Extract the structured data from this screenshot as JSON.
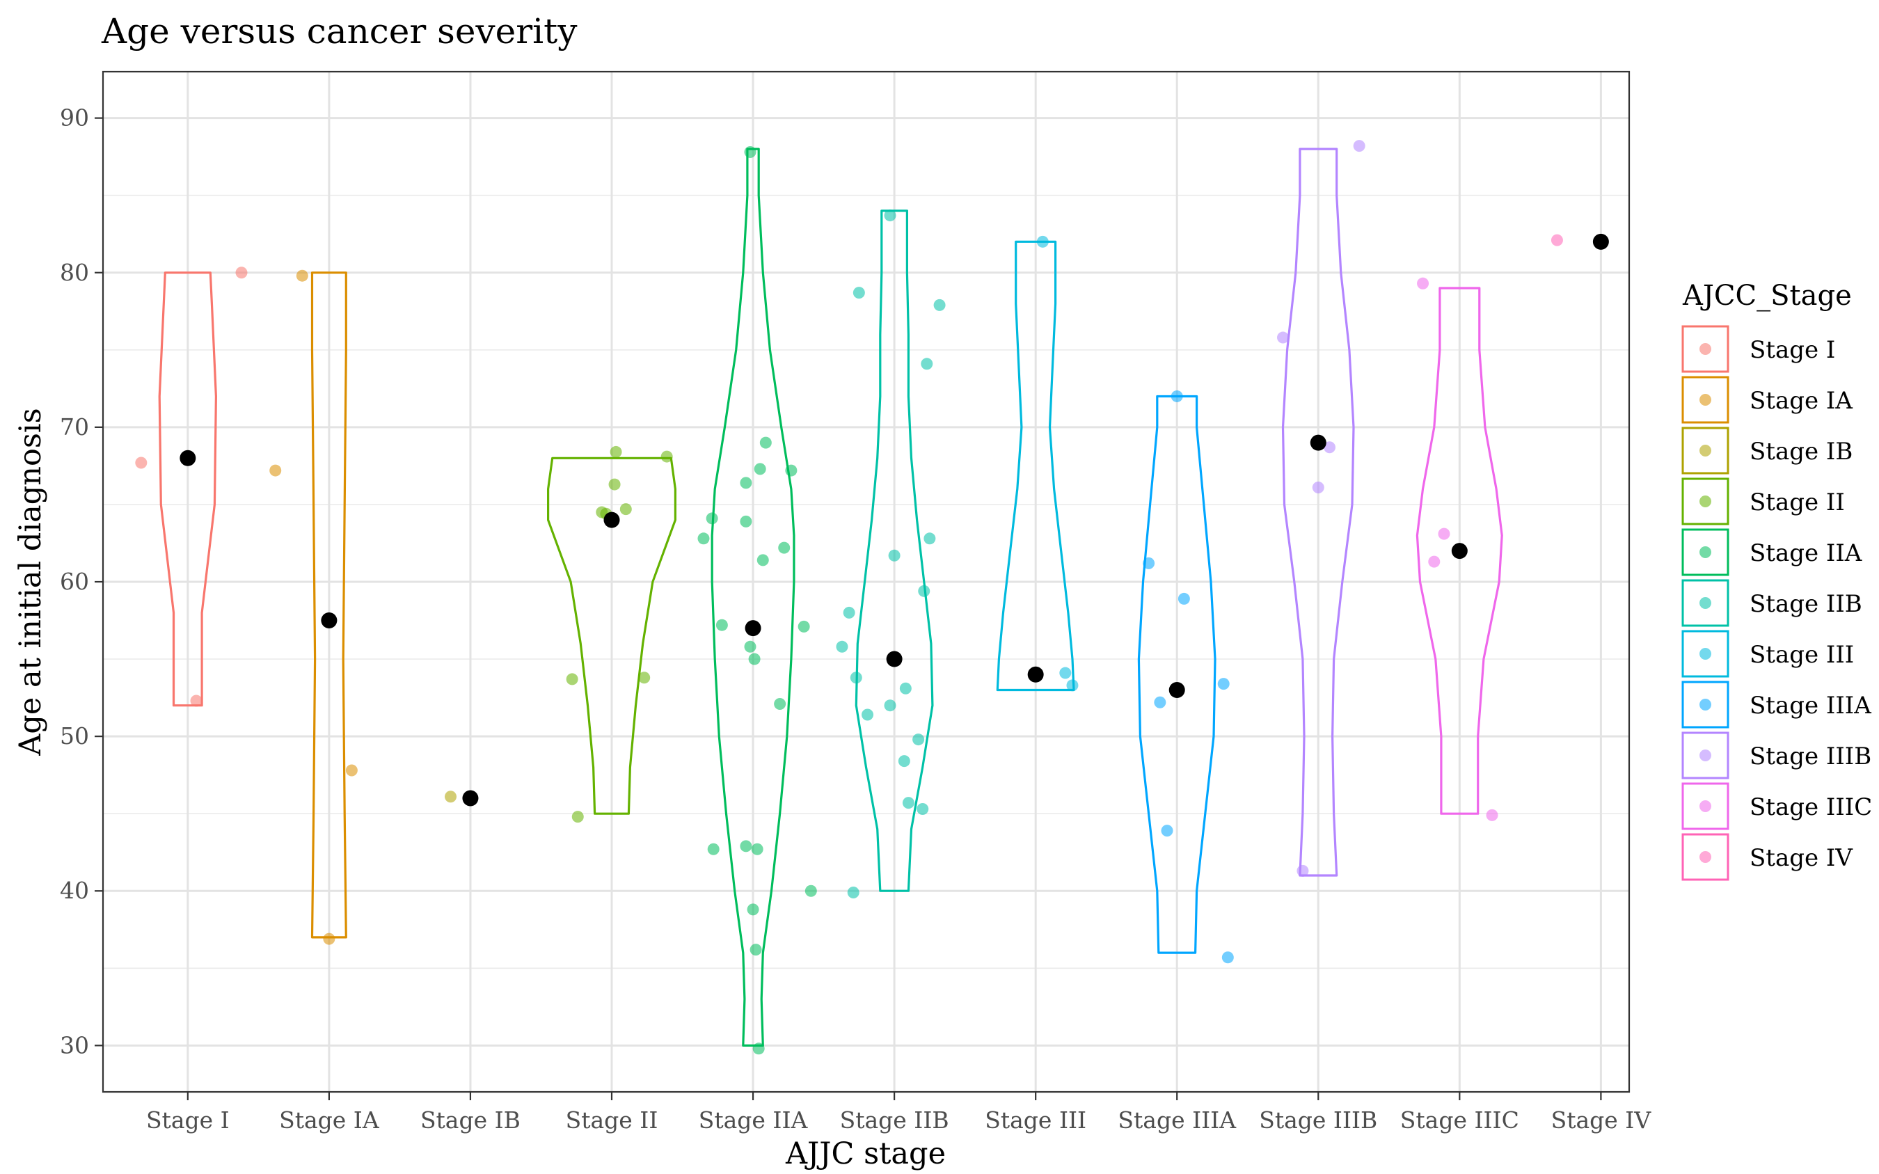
{
  "chart_data": {
    "type": "violin",
    "title": "Age versus cancer severity",
    "xlabel": "AJJC stage",
    "ylabel": "Age at initial diagnosis",
    "ylim": [
      27.0,
      93.0
    ],
    "yticks": [
      30,
      40,
      50,
      60,
      70,
      80,
      90
    ],
    "grid": true,
    "legend": {
      "title": "AJCC_Stage",
      "position": "right"
    },
    "categories": [
      "Stage I",
      "Stage IA",
      "Stage IB",
      "Stage II",
      "Stage IIA",
      "Stage IIB",
      "Stage III",
      "Stage IIIA",
      "Stage IIIB",
      "Stage IIIC",
      "Stage IV"
    ],
    "colors": [
      "#F8766D",
      "#DB8E00",
      "#AEA200",
      "#64B200",
      "#00BD5C",
      "#00C1A7",
      "#00BADE",
      "#00A6FF",
      "#B385FF",
      "#EF67EB",
      "#FF63B6"
    ],
    "median_color": "#000000",
    "series": [
      {
        "name": "Stage I",
        "median": 68.0,
        "points": [
          {
            "x": -0.33,
            "y": 67.7
          },
          {
            "x": 0.38,
            "y": 80.0
          },
          {
            "x": 0.06,
            "y": 52.3
          }
        ],
        "violin": [
          [
            52.0,
            0.1
          ],
          [
            58.0,
            0.1
          ],
          [
            65.0,
            0.19
          ],
          [
            72.0,
            0.2
          ],
          [
            78.0,
            0.17
          ],
          [
            80.0,
            0.16
          ]
        ]
      },
      {
        "name": "Stage IA",
        "median": 57.5,
        "points": [
          {
            "x": -0.19,
            "y": 79.8
          },
          {
            "x": -0.38,
            "y": 67.2
          },
          {
            "x": 0.16,
            "y": 47.8
          },
          {
            "x": 0.0,
            "y": 36.9
          }
        ],
        "violin": [
          [
            37.0,
            0.12
          ],
          [
            45.0,
            0.11
          ],
          [
            55.0,
            0.1
          ],
          [
            65.0,
            0.11
          ],
          [
            75.0,
            0.12
          ],
          [
            80.0,
            0.12
          ]
        ]
      },
      {
        "name": "Stage IB",
        "median": 46.0,
        "points": [
          {
            "x": -0.14,
            "y": 46.1
          }
        ],
        "violin": []
      },
      {
        "name": "Stage II",
        "median": 64.0,
        "points": [
          {
            "x": 0.03,
            "y": 68.4
          },
          {
            "x": 0.39,
            "y": 68.1
          },
          {
            "x": 0.02,
            "y": 66.3
          },
          {
            "x": 0.1,
            "y": 64.7
          },
          {
            "x": -0.07,
            "y": 64.5
          },
          {
            "x": -0.04,
            "y": 64.4
          },
          {
            "x": -0.28,
            "y": 53.7
          },
          {
            "x": 0.23,
            "y": 53.8
          },
          {
            "x": -0.24,
            "y": 44.8
          }
        ],
        "violin": [
          [
            45.0,
            0.12
          ],
          [
            48.0,
            0.13
          ],
          [
            52.0,
            0.17
          ],
          [
            56.0,
            0.22
          ],
          [
            60.0,
            0.29
          ],
          [
            64.0,
            0.45
          ],
          [
            66.0,
            0.45
          ],
          [
            68.0,
            0.42
          ]
        ]
      },
      {
        "name": "Stage IIA",
        "median": 57.0,
        "points": [
          {
            "x": -0.02,
            "y": 87.8
          },
          {
            "x": 0.09,
            "y": 69.0
          },
          {
            "x": 0.05,
            "y": 67.3
          },
          {
            "x": 0.27,
            "y": 67.2
          },
          {
            "x": -0.05,
            "y": 66.4
          },
          {
            "x": -0.29,
            "y": 64.1
          },
          {
            "x": -0.05,
            "y": 63.9
          },
          {
            "x": 0.22,
            "y": 62.2
          },
          {
            "x": -0.35,
            "y": 62.8
          },
          {
            "x": 0.07,
            "y": 61.4
          },
          {
            "x": -0.22,
            "y": 57.2
          },
          {
            "x": 0.36,
            "y": 57.1
          },
          {
            "x": -0.02,
            "y": 55.8
          },
          {
            "x": 0.01,
            "y": 55.0
          },
          {
            "x": 0.19,
            "y": 52.1
          },
          {
            "x": -0.28,
            "y": 42.7
          },
          {
            "x": -0.05,
            "y": 42.9
          },
          {
            "x": 0.03,
            "y": 42.7
          },
          {
            "x": 0.41,
            "y": 40.0
          },
          {
            "x": 0.0,
            "y": 38.8
          },
          {
            "x": 0.02,
            "y": 36.2
          },
          {
            "x": 0.04,
            "y": 29.8
          }
        ],
        "violin": [
          [
            30.0,
            0.07
          ],
          [
            33.0,
            0.06
          ],
          [
            36.0,
            0.07
          ],
          [
            40.0,
            0.13
          ],
          [
            45.0,
            0.19
          ],
          [
            50.0,
            0.24
          ],
          [
            55.0,
            0.27
          ],
          [
            60.0,
            0.29
          ],
          [
            63.0,
            0.29
          ],
          [
            66.0,
            0.27
          ],
          [
            70.0,
            0.2
          ],
          [
            75.0,
            0.12
          ],
          [
            80.0,
            0.07
          ],
          [
            85.0,
            0.04
          ],
          [
            88.0,
            0.04
          ]
        ]
      },
      {
        "name": "Stage IIB",
        "median": 55.0,
        "points": [
          {
            "x": -0.03,
            "y": 83.7
          },
          {
            "x": -0.25,
            "y": 78.7
          },
          {
            "x": 0.32,
            "y": 77.9
          },
          {
            "x": 0.23,
            "y": 74.1
          },
          {
            "x": 0.25,
            "y": 62.8
          },
          {
            "x": 0.0,
            "y": 61.7
          },
          {
            "x": 0.21,
            "y": 59.4
          },
          {
            "x": -0.32,
            "y": 58.0
          },
          {
            "x": -0.37,
            "y": 55.8
          },
          {
            "x": -0.27,
            "y": 53.8
          },
          {
            "x": 0.08,
            "y": 53.1
          },
          {
            "x": -0.03,
            "y": 52.0
          },
          {
            "x": -0.19,
            "y": 51.4
          },
          {
            "x": 0.17,
            "y": 49.8
          },
          {
            "x": 0.07,
            "y": 48.4
          },
          {
            "x": 0.1,
            "y": 45.7
          },
          {
            "x": 0.2,
            "y": 45.3
          },
          {
            "x": -0.29,
            "y": 39.9
          }
        ],
        "violin": [
          [
            40.0,
            0.1
          ],
          [
            44.0,
            0.12
          ],
          [
            48.0,
            0.2
          ],
          [
            52.0,
            0.27
          ],
          [
            56.0,
            0.26
          ],
          [
            60.0,
            0.21
          ],
          [
            64.0,
            0.16
          ],
          [
            68.0,
            0.12
          ],
          [
            72.0,
            0.1
          ],
          [
            76.0,
            0.1
          ],
          [
            80.0,
            0.09
          ],
          [
            84.0,
            0.09
          ]
        ]
      },
      {
        "name": "Stage III",
        "median": 54.0,
        "points": [
          {
            "x": 0.05,
            "y": 82.0
          },
          {
            "x": 0.21,
            "y": 54.1
          },
          {
            "x": 0.26,
            "y": 53.3
          }
        ],
        "violin": [
          [
            53.0,
            0.27
          ],
          [
            55.0,
            0.26
          ],
          [
            58.0,
            0.23
          ],
          [
            62.0,
            0.18
          ],
          [
            66.0,
            0.13
          ],
          [
            70.0,
            0.1
          ],
          [
            74.0,
            0.12
          ],
          [
            78.0,
            0.14
          ],
          [
            82.0,
            0.14
          ]
        ]
      },
      {
        "name": "Stage IIIA",
        "median": 53.0,
        "points": [
          {
            "x": 0.0,
            "y": 72.0
          },
          {
            "x": -0.2,
            "y": 61.2
          },
          {
            "x": 0.05,
            "y": 58.9
          },
          {
            "x": 0.33,
            "y": 53.4
          },
          {
            "x": -0.12,
            "y": 52.2
          },
          {
            "x": -0.07,
            "y": 43.9
          },
          {
            "x": 0.36,
            "y": 35.7
          }
        ],
        "violin": [
          [
            36.0,
            0.13
          ],
          [
            40.0,
            0.14
          ],
          [
            45.0,
            0.2
          ],
          [
            50.0,
            0.26
          ],
          [
            55.0,
            0.27
          ],
          [
            60.0,
            0.24
          ],
          [
            65.0,
            0.19
          ],
          [
            70.0,
            0.14
          ],
          [
            72.0,
            0.14
          ]
        ]
      },
      {
        "name": "Stage IIIB",
        "median": 69.0,
        "points": [
          {
            "x": 0.29,
            "y": 88.2
          },
          {
            "x": -0.25,
            "y": 75.8
          },
          {
            "x": 0.08,
            "y": 68.7
          },
          {
            "x": 0.0,
            "y": 66.1
          },
          {
            "x": -0.11,
            "y": 41.3
          }
        ],
        "violin": [
          [
            41.0,
            0.13
          ],
          [
            45.0,
            0.11
          ],
          [
            50.0,
            0.1
          ],
          [
            55.0,
            0.11
          ],
          [
            60.0,
            0.17
          ],
          [
            65.0,
            0.24
          ],
          [
            70.0,
            0.25
          ],
          [
            75.0,
            0.22
          ],
          [
            80.0,
            0.16
          ],
          [
            85.0,
            0.13
          ],
          [
            88.0,
            0.13
          ]
        ]
      },
      {
        "name": "Stage IIIC",
        "median": 62.0,
        "points": [
          {
            "x": -0.26,
            "y": 79.3
          },
          {
            "x": -0.11,
            "y": 63.1
          },
          {
            "x": -0.18,
            "y": 61.3
          },
          {
            "x": 0.23,
            "y": 44.9
          }
        ],
        "violin": [
          [
            45.0,
            0.13
          ],
          [
            50.0,
            0.13
          ],
          [
            55.0,
            0.17
          ],
          [
            60.0,
            0.28
          ],
          [
            63.0,
            0.3
          ],
          [
            66.0,
            0.26
          ],
          [
            70.0,
            0.18
          ],
          [
            75.0,
            0.14
          ],
          [
            79.0,
            0.14
          ]
        ]
      },
      {
        "name": "Stage IV",
        "median": 82.0,
        "points": [
          {
            "x": -0.31,
            "y": 82.1
          }
        ],
        "violin": []
      }
    ]
  }
}
